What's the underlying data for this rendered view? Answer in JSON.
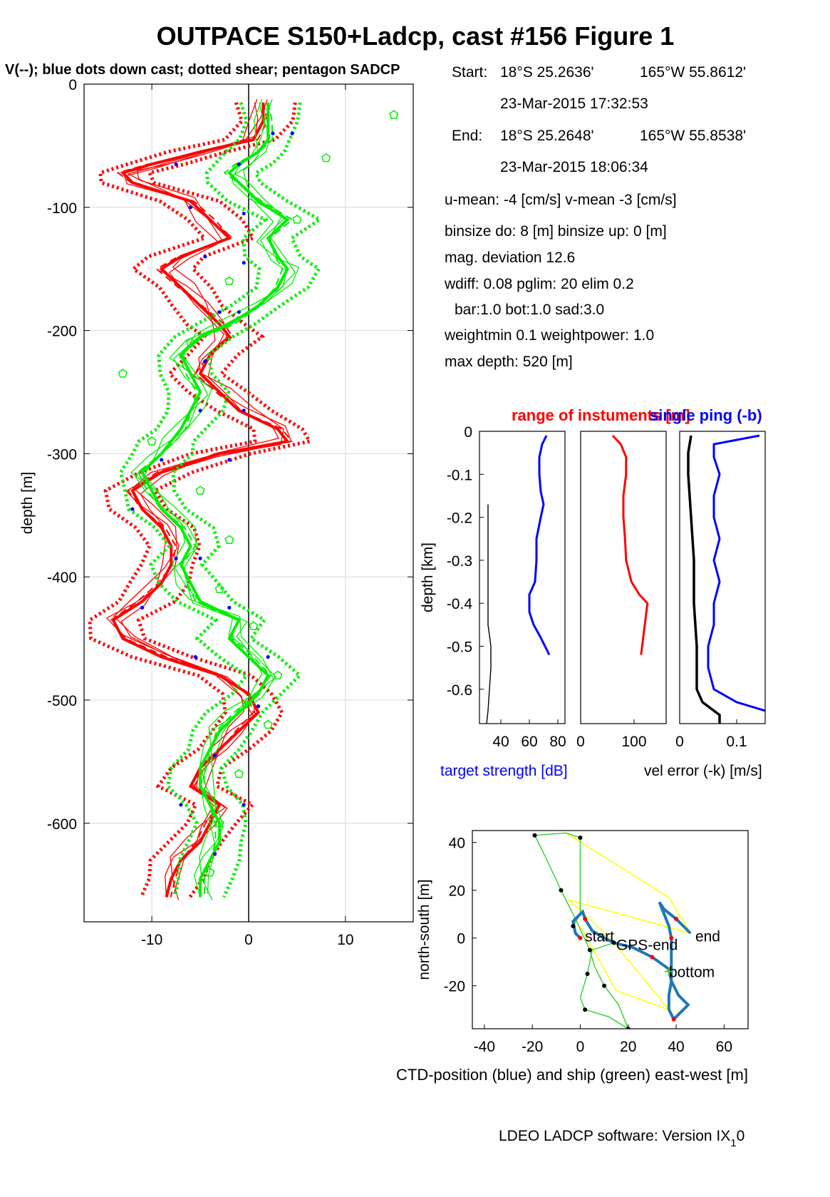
{
  "title": "OUTPACE S150+Ladcp, cast #156  Figure 1",
  "subtitle": "V(--); blue dots down cast; dotted shear; pentagon SADCP",
  "info": {
    "start_label": "Start:",
    "start_lat": "18°S 25.2636'",
    "start_lon": "165°W 55.8612'",
    "start_time": "23-Mar-2015 17:32:53",
    "end_label": "End:",
    "end_lat": "18°S 25.2648'",
    "end_lon": "165°W 55.8538'",
    "end_time": "23-Mar-2015 18:06:34",
    "umean": "u-mean:  -4 [cm/s]    v-mean  -3 [cm/s]",
    "binsize": "binsize do: 8 [m]  binsize up:  0 [m]",
    "magdev": "mag. deviation 12.6",
    "wdiff": "wdiff: 0.08  pglim: 20  elim 0.2",
    "bar": "bar:1.0 bot:1.0 sad:3.0",
    "weight": "weightmin 0.1  weightpower: 1.0",
    "maxdepth": "max depth: 520 [m]"
  },
  "footer": {
    "text": "LDEO LADCP software: Version IX",
    "subscript": "1",
    "suffix": "0"
  },
  "colors": {
    "u": "#ff0000",
    "v": "#00ee00",
    "target": "#0000ff",
    "black": "#000000",
    "yellow": "#ffff00",
    "ctd": "#1f77b4"
  },
  "chart_data": [
    {
      "id": "velocity-profile",
      "type": "line",
      "ylabel": "depth [m]",
      "xlim": [
        -17,
        17
      ],
      "ylim": [
        -680,
        0
      ],
      "xticks": [
        -10,
        0,
        10
      ],
      "yticks": [
        0,
        -100,
        -200,
        -300,
        -400,
        -500,
        -600
      ],
      "grid": true,
      "depth": [
        -15,
        -30,
        -45,
        -55,
        -65,
        -72,
        -80,
        -95,
        -110,
        -125,
        -140,
        -150,
        -165,
        -180,
        -195,
        -205,
        -220,
        -235,
        -250,
        -265,
        -280,
        -290,
        -300,
        -315,
        -330,
        -345,
        -360,
        -375,
        -390,
        -405,
        -420,
        -435,
        -450,
        -465,
        -480,
        -495,
        -510,
        -525,
        -540,
        -555,
        -570,
        -585,
        -600,
        -615,
        -630,
        -645,
        -660
      ],
      "series": [
        {
          "color": "u",
          "values": [
            1.5,
            1.5,
            0.5,
            -5,
            -10,
            -13,
            -12,
            -6,
            -4,
            -2,
            -7,
            -9,
            -7,
            -5,
            -3,
            -2,
            -4,
            -5,
            -3,
            -1,
            3,
            4,
            -3,
            -9,
            -12,
            -11,
            -9,
            -8,
            -8,
            -9,
            -11,
            -14,
            -13,
            -9,
            -3,
            0,
            1,
            -1,
            -3,
            -5,
            -6,
            -3,
            -4,
            -5,
            -7,
            -8,
            -8.5
          ]
        },
        {
          "color": "v",
          "values": [
            2,
            2,
            2,
            1,
            -1,
            -2,
            -1,
            1,
            4,
            2,
            3,
            4,
            3,
            1,
            -2,
            -5,
            -7,
            -6,
            -5,
            -6,
            -7,
            -8,
            -9,
            -11,
            -10,
            -9,
            -7,
            -6,
            -7,
            -6,
            -5,
            -1,
            -2,
            0,
            2,
            1,
            -1,
            -3,
            -4,
            -5,
            -5,
            -4,
            -3,
            -3,
            -4,
            -5,
            -5
          ]
        }
      ],
      "dots_down_cast": [
        [
          -7.5,
          -65
        ],
        [
          -6,
          -100
        ],
        [
          -4.5,
          -140
        ],
        [
          -3,
          -185
        ],
        [
          -4.5,
          -225
        ],
        [
          -5,
          -265
        ],
        [
          -9,
          -305
        ],
        [
          -12,
          -345
        ],
        [
          -7.5,
          -385
        ],
        [
          -11,
          -425
        ],
        [
          -5.5,
          -465
        ],
        [
          1,
          -505
        ],
        [
          -3.5,
          -545
        ],
        [
          -7,
          -585
        ],
        [
          -3.5,
          -625
        ],
        [
          -1,
          -65
        ],
        [
          -0.5,
          -105
        ],
        [
          -0.5,
          -145
        ],
        [
          -1,
          -185
        ],
        [
          -0.5,
          -265
        ],
        [
          -2,
          -305
        ],
        [
          -5,
          -385
        ],
        [
          -2,
          -425
        ],
        [
          2,
          -465
        ],
        [
          1,
          -505
        ],
        [
          -0.5,
          -585
        ],
        [
          2.5,
          -40
        ],
        [
          4.5,
          -40
        ]
      ],
      "sadcp": [
        [
          15,
          -25
        ],
        [
          8,
          -60
        ],
        [
          5,
          -110
        ],
        [
          -2,
          -160
        ],
        [
          -6,
          -210
        ],
        [
          -13,
          -235
        ],
        [
          -10,
          -290
        ],
        [
          -5,
          -330
        ],
        [
          -2,
          -370
        ],
        [
          -3,
          -410
        ],
        [
          0.5,
          -440
        ],
        [
          3,
          -480
        ],
        [
          2,
          -520
        ],
        [
          -1,
          -560
        ],
        [
          -3,
          -600
        ],
        [
          -4,
          -640
        ]
      ]
    },
    {
      "id": "target-strength",
      "type": "line",
      "ylabel": "depth [km]",
      "xlabel": "target strength [dB]",
      "xlim": [
        25,
        85
      ],
      "ylim": [
        -0.68,
        0
      ],
      "xticks": [
        40,
        60,
        80
      ],
      "yticks": [
        0,
        -0.1,
        -0.2,
        -0.3,
        -0.4,
        -0.5,
        -0.6
      ],
      "series": [
        {
          "color": "target",
          "depth": [
            -0.01,
            -0.03,
            -0.06,
            -0.1,
            -0.14,
            -0.17,
            -0.2,
            -0.25,
            -0.3,
            -0.35,
            -0.38,
            -0.42,
            -0.45,
            -0.48,
            -0.52
          ],
          "values": [
            72,
            69,
            67,
            67,
            68,
            70,
            68,
            65,
            65,
            64,
            60,
            60,
            63,
            68,
            74
          ]
        },
        {
          "color": "black",
          "depth": [
            -0.17,
            -0.25,
            -0.35,
            -0.45,
            -0.5,
            -0.55,
            -0.6,
            -0.65,
            -0.68
          ],
          "values": [
            31,
            31,
            31,
            31,
            33,
            33,
            32,
            31,
            30
          ]
        }
      ]
    },
    {
      "id": "range-of-instruments",
      "type": "line",
      "title": "range of instuments [m]",
      "xlim": [
        0,
        160
      ],
      "ylim": [
        -0.68,
        0
      ],
      "xticks": [
        0,
        100
      ],
      "series": [
        {
          "color": "u",
          "depth": [
            -0.01,
            -0.03,
            -0.06,
            -0.1,
            -0.15,
            -0.2,
            -0.25,
            -0.3,
            -0.35,
            -0.38,
            -0.4,
            -0.45,
            -0.5,
            -0.52
          ],
          "values": [
            60,
            75,
            85,
            85,
            80,
            80,
            83,
            85,
            95,
            110,
            125,
            120,
            115,
            113
          ]
        }
      ]
    },
    {
      "id": "vel-error",
      "type": "line",
      "title": "single ping (-b)",
      "xlabel": "vel error (-k) [m/s]",
      "xlim": [
        0,
        0.15
      ],
      "ylim": [
        -0.68,
        0
      ],
      "xticks": [
        0,
        0.1
      ],
      "series": [
        {
          "color": "target",
          "depth": [
            -0.01,
            -0.03,
            -0.06,
            -0.1,
            -0.15,
            -0.2,
            -0.25,
            -0.3,
            -0.35,
            -0.4,
            -0.45,
            -0.5,
            -0.55,
            -0.6,
            -0.63,
            -0.65
          ],
          "values": [
            0.14,
            0.06,
            0.06,
            0.07,
            0.06,
            0.06,
            0.07,
            0.06,
            0.07,
            0.06,
            0.06,
            0.05,
            0.05,
            0.06,
            0.1,
            0.15
          ]
        },
        {
          "color": "black",
          "depth": [
            -0.01,
            -0.05,
            -0.1,
            -0.2,
            -0.3,
            -0.4,
            -0.5,
            -0.55,
            -0.6,
            -0.63,
            -0.66,
            -0.68
          ],
          "values": [
            0.02,
            0.015,
            0.015,
            0.02,
            0.025,
            0.025,
            0.03,
            0.03,
            0.03,
            0.04,
            0.07,
            0.07
          ]
        }
      ]
    },
    {
      "id": "position",
      "type": "line",
      "xlabel": "CTD-position (blue) and ship (green) east-west [m]",
      "ylabel": "north-south [m]",
      "xlim": [
        -45,
        70
      ],
      "ylim": [
        -38,
        45
      ],
      "xticks": [
        -40,
        -20,
        0,
        20,
        40,
        60
      ],
      "yticks": [
        40,
        20,
        0,
        -20
      ],
      "ctd": [
        [
          0,
          0
        ],
        [
          -2,
          2
        ],
        [
          -3,
          7
        ],
        [
          -1,
          9
        ],
        [
          1,
          11
        ],
        [
          2,
          8
        ],
        [
          5,
          3
        ],
        [
          10,
          0
        ],
        [
          14,
          -2
        ],
        [
          22,
          -4
        ],
        [
          30,
          -8
        ],
        [
          37,
          -13
        ],
        [
          38,
          -18
        ],
        [
          37,
          -24
        ],
        [
          37,
          -30
        ],
        [
          39,
          -34
        ],
        [
          45,
          -28
        ],
        [
          41,
          -24
        ],
        [
          38,
          -18
        ],
        [
          38,
          -8
        ],
        [
          38,
          0
        ],
        [
          37,
          5
        ],
        [
          35,
          10
        ],
        [
          33,
          15
        ],
        [
          35,
          12
        ],
        [
          40,
          8
        ],
        [
          46,
          2
        ]
      ],
      "ship": [
        [
          14,
          -2
        ],
        [
          5,
          -5
        ],
        [
          3,
          -15
        ],
        [
          0,
          -25
        ],
        [
          2,
          -30
        ],
        [
          12,
          -33
        ],
        [
          20,
          -38
        ],
        [
          16,
          -28
        ],
        [
          10,
          -20
        ],
        [
          6,
          -12
        ],
        [
          4,
          -5
        ],
        [
          -2,
          8
        ],
        [
          -8,
          20
        ],
        [
          -15,
          35
        ],
        [
          -19,
          43
        ],
        [
          -6,
          44
        ],
        [
          0,
          42
        ],
        [
          0,
          10
        ],
        [
          -3,
          5
        ]
      ],
      "yellow": [
        [
          -6,
          44
        ],
        [
          37,
          17
        ],
        [
          46,
          2
        ],
        [
          -5,
          16
        ],
        [
          1,
          11
        ],
        [
          14,
          -2
        ],
        [
          37,
          -30
        ],
        [
          15,
          -22
        ],
        [
          0,
          5
        ]
      ],
      "labels": {
        "start": "start",
        "gps_end": "GPS-end",
        "end": "end",
        "bottom": "bottom"
      }
    }
  ]
}
